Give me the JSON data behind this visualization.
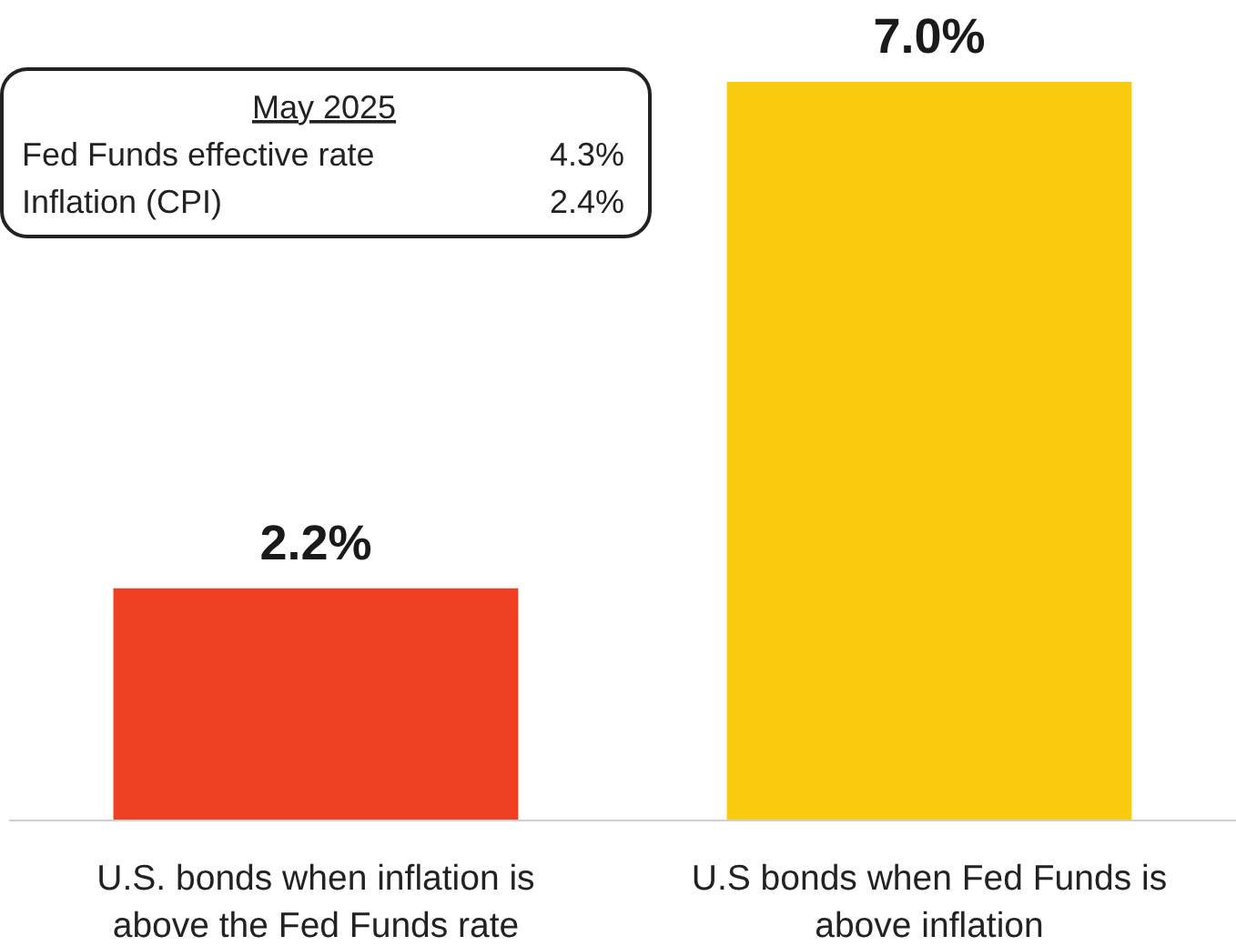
{
  "chart_data": {
    "type": "bar",
    "categories": [
      "U.S. bonds when inflation is above the Fed Funds rate",
      "U.S bonds when Fed Funds is above inflation"
    ],
    "values": [
      2.2,
      7.0
    ],
    "colors": [
      "#f04023",
      "#f9cc0f"
    ],
    "value_labels": [
      "2.2%",
      "7.0%"
    ],
    "annotations": [
      "May 2025",
      "Fed Funds effective rate",
      "4.3%",
      "Inflation (CPI)",
      "2.4%"
    ]
  }
}
